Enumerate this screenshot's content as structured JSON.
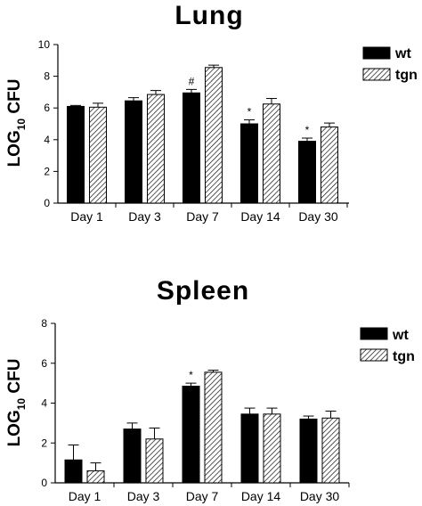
{
  "chart_data": [
    {
      "type": "bar",
      "title": "Lung",
      "ylabel": "LOG",
      "ylabel_sub": "10",
      "ylabel_unit": " CFU",
      "ylim": [
        0,
        10
      ],
      "yticks": [
        0,
        2,
        4,
        6,
        8,
        10
      ],
      "categories": [
        "Day 1",
        "Day 3",
        "Day 7",
        "Day 14",
        "Day 30"
      ],
      "series": [
        {
          "name": "wt",
          "values": [
            6.1,
            6.45,
            6.95,
            5.0,
            3.9
          ],
          "errors": [
            0.06,
            0.2,
            0.22,
            0.25,
            0.2
          ]
        },
        {
          "name": "tgn",
          "values": [
            6.05,
            6.85,
            8.55,
            6.25,
            4.8
          ],
          "errors": [
            0.25,
            0.25,
            0.15,
            0.35,
            0.25
          ]
        }
      ],
      "annotations": [
        {
          "category": "Day 7",
          "series": "wt",
          "text": "#"
        },
        {
          "category": "Day 14",
          "series": "wt",
          "text": "*"
        },
        {
          "category": "Day 30",
          "series": "wt",
          "text": "*"
        }
      ],
      "legend": "right"
    },
    {
      "type": "bar",
      "title": "Spleen",
      "ylabel": "LOG",
      "ylabel_sub": "10",
      "ylabel_unit": " CFU",
      "ylim": [
        0,
        8
      ],
      "yticks": [
        0,
        2,
        4,
        6,
        8
      ],
      "categories": [
        "Day 1",
        "Day 3",
        "Day 7",
        "Day 14",
        "Day 30"
      ],
      "series": [
        {
          "name": "wt",
          "values": [
            1.15,
            2.7,
            4.85,
            3.45,
            3.2
          ],
          "errors": [
            0.75,
            0.3,
            0.15,
            0.3,
            0.15
          ]
        },
        {
          "name": "tgn",
          "values": [
            0.6,
            2.2,
            5.55,
            3.45,
            3.25
          ],
          "errors": [
            0.4,
            0.55,
            0.1,
            0.3,
            0.35
          ]
        }
      ],
      "annotations": [
        {
          "category": "Day 7",
          "series": "wt",
          "text": "*"
        }
      ],
      "legend": "right"
    }
  ]
}
